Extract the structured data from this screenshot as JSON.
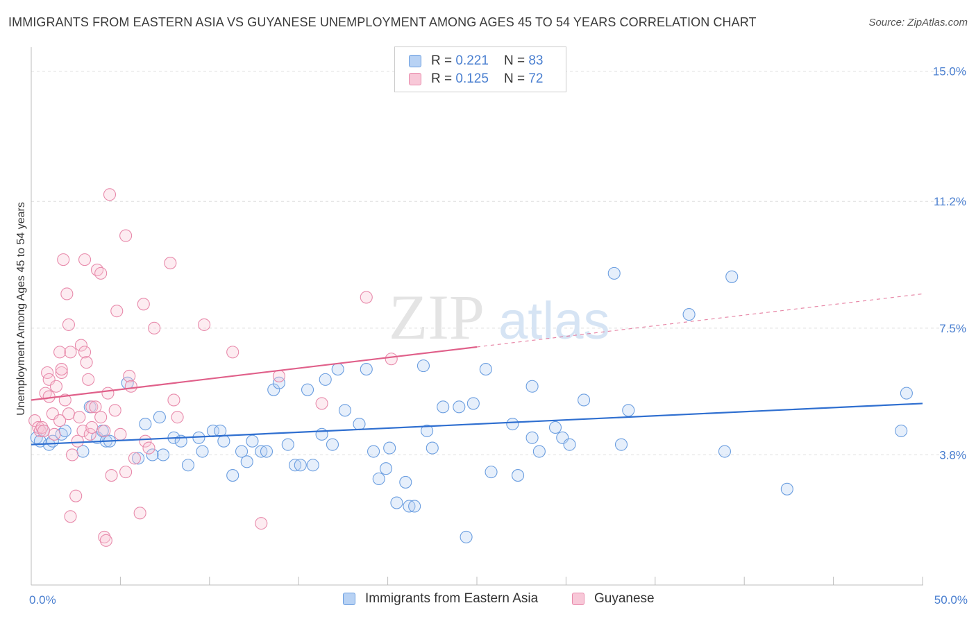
{
  "title": "IMMIGRANTS FROM EASTERN ASIA VS GUYANESE UNEMPLOYMENT AMONG AGES 45 TO 54 YEARS CORRELATION CHART",
  "source": "Source: ZipAtlas.com",
  "watermark": {
    "zip": "ZIP",
    "atlas": "atlas"
  },
  "legend": {
    "blue": {
      "r_label": "R = ",
      "r_value": "0.221",
      "n_label": "N = ",
      "n_value": "83"
    },
    "pink": {
      "r_label": "R = ",
      "r_value": "0.125",
      "n_label": "N = ",
      "n_value": "72"
    }
  },
  "chart_data": {
    "type": "scatter",
    "title": "IMMIGRANTS FROM EASTERN ASIA VS GUYANESE UNEMPLOYMENT AMONG AGES 45 TO 54 YEARS CORRELATION CHART",
    "xlabel": "",
    "ylabel": "Unemployment Among Ages 45 to 54 years",
    "xlim": [
      0,
      50
    ],
    "ylim": [
      0,
      15.5
    ],
    "x_tick_labels": [
      "0.0%",
      "50.0%"
    ],
    "y_ticks": [
      3.8,
      7.5,
      11.2,
      15.0
    ],
    "y_tick_labels": [
      "3.8%",
      "7.5%",
      "11.2%",
      "15.0%"
    ],
    "grid": true,
    "legend_position": "bottom-center",
    "colors": {
      "blue": "#6b9ee0",
      "blue_line": "#2f6fd0",
      "pink": "#e88aab",
      "pink_line": "#e0608a"
    },
    "series": [
      {
        "name": "Immigrants from Eastern Asia",
        "color": "#6b9ee0",
        "trend": {
          "x": [
            0,
            50
          ],
          "y": [
            4.1,
            5.3
          ],
          "style": "solid"
        },
        "points": [
          [
            0.3,
            4.3
          ],
          [
            0.5,
            4.2
          ],
          [
            0.7,
            4.5
          ],
          [
            1.0,
            4.1
          ],
          [
            1.2,
            4.2
          ],
          [
            1.7,
            4.4
          ],
          [
            1.9,
            4.5
          ],
          [
            2.9,
            3.9
          ],
          [
            3.3,
            5.2
          ],
          [
            3.7,
            4.3
          ],
          [
            4.0,
            4.5
          ],
          [
            4.2,
            4.2
          ],
          [
            4.4,
            4.2
          ],
          [
            5.4,
            5.9
          ],
          [
            6.0,
            3.7
          ],
          [
            6.4,
            4.7
          ],
          [
            6.8,
            3.8
          ],
          [
            7.2,
            4.9
          ],
          [
            7.4,
            3.8
          ],
          [
            8.0,
            4.3
          ],
          [
            8.4,
            4.2
          ],
          [
            8.8,
            3.5
          ],
          [
            9.4,
            4.3
          ],
          [
            9.6,
            3.9
          ],
          [
            10.2,
            4.5
          ],
          [
            10.6,
            4.5
          ],
          [
            10.8,
            4.2
          ],
          [
            11.3,
            3.2
          ],
          [
            11.8,
            3.9
          ],
          [
            12.1,
            3.6
          ],
          [
            12.4,
            4.2
          ],
          [
            12.9,
            3.9
          ],
          [
            13.2,
            3.9
          ],
          [
            13.6,
            5.7
          ],
          [
            13.9,
            5.9
          ],
          [
            14.4,
            4.1
          ],
          [
            14.8,
            3.5
          ],
          [
            15.1,
            3.5
          ],
          [
            15.5,
            5.7
          ],
          [
            15.8,
            3.5
          ],
          [
            16.3,
            4.4
          ],
          [
            16.5,
            6.0
          ],
          [
            16.9,
            4.1
          ],
          [
            17.2,
            6.3
          ],
          [
            17.6,
            5.1
          ],
          [
            18.4,
            4.7
          ],
          [
            18.8,
            6.3
          ],
          [
            19.2,
            3.9
          ],
          [
            19.5,
            3.1
          ],
          [
            19.9,
            3.4
          ],
          [
            20.1,
            4.0
          ],
          [
            20.5,
            2.4
          ],
          [
            21.0,
            3.0
          ],
          [
            21.2,
            2.3
          ],
          [
            21.5,
            2.3
          ],
          [
            22.0,
            6.4
          ],
          [
            22.2,
            4.5
          ],
          [
            22.5,
            4.0
          ],
          [
            23.1,
            5.2
          ],
          [
            24.0,
            5.2
          ],
          [
            24.4,
            1.4
          ],
          [
            24.8,
            5.3
          ],
          [
            25.5,
            6.3
          ],
          [
            25.8,
            3.3
          ],
          [
            27.3,
            3.2
          ],
          [
            27.0,
            4.7
          ],
          [
            28.1,
            5.8
          ],
          [
            28.1,
            4.3
          ],
          [
            28.5,
            3.9
          ],
          [
            29.4,
            4.6
          ],
          [
            29.8,
            4.3
          ],
          [
            30.2,
            4.1
          ],
          [
            31.0,
            5.4
          ],
          [
            32.7,
            9.1
          ],
          [
            33.1,
            4.1
          ],
          [
            33.5,
            5.1
          ],
          [
            36.9,
            7.9
          ],
          [
            38.9,
            3.9
          ],
          [
            39.3,
            9.0
          ],
          [
            42.4,
            2.8
          ],
          [
            48.8,
            4.5
          ],
          [
            49.1,
            5.6
          ]
        ]
      },
      {
        "name": "Guyanese",
        "color": "#e88aab",
        "trend": {
          "x": [
            0,
            50
          ],
          "y": [
            5.4,
            8.5
          ],
          "style": "solid-then-dashed",
          "solid_until_x": 25
        },
        "points": [
          [
            0.2,
            4.8
          ],
          [
            0.4,
            4.6
          ],
          [
            0.5,
            4.5
          ],
          [
            0.6,
            4.6
          ],
          [
            0.7,
            4.5
          ],
          [
            0.8,
            5.6
          ],
          [
            0.9,
            6.2
          ],
          [
            1.0,
            6.0
          ],
          [
            1.0,
            5.5
          ],
          [
            1.2,
            5.0
          ],
          [
            1.3,
            4.4
          ],
          [
            1.4,
            5.8
          ],
          [
            1.6,
            4.8
          ],
          [
            1.6,
            6.8
          ],
          [
            1.7,
            6.2
          ],
          [
            1.7,
            6.3
          ],
          [
            1.8,
            9.5
          ],
          [
            1.9,
            5.4
          ],
          [
            2.0,
            8.5
          ],
          [
            2.1,
            7.6
          ],
          [
            2.1,
            5.0
          ],
          [
            2.2,
            6.8
          ],
          [
            2.3,
            3.8
          ],
          [
            2.2,
            2.0
          ],
          [
            2.5,
            2.6
          ],
          [
            2.6,
            4.2
          ],
          [
            2.7,
            4.9
          ],
          [
            2.8,
            7.0
          ],
          [
            2.9,
            4.5
          ],
          [
            3.0,
            6.8
          ],
          [
            3.0,
            9.5
          ],
          [
            3.1,
            6.5
          ],
          [
            3.2,
            6.0
          ],
          [
            3.3,
            4.4
          ],
          [
            3.4,
            5.2
          ],
          [
            3.4,
            4.6
          ],
          [
            3.6,
            5.2
          ],
          [
            3.7,
            9.2
          ],
          [
            3.9,
            9.1
          ],
          [
            3.9,
            4.9
          ],
          [
            4.1,
            4.5
          ],
          [
            4.1,
            1.4
          ],
          [
            4.2,
            1.3
          ],
          [
            4.3,
            5.6
          ],
          [
            4.4,
            11.4
          ],
          [
            4.5,
            3.2
          ],
          [
            4.7,
            5.1
          ],
          [
            4.8,
            8.0
          ],
          [
            5.0,
            4.4
          ],
          [
            5.3,
            3.3
          ],
          [
            5.3,
            10.2
          ],
          [
            5.5,
            6.1
          ],
          [
            5.6,
            5.8
          ],
          [
            5.8,
            3.7
          ],
          [
            6.1,
            2.1
          ],
          [
            6.3,
            8.2
          ],
          [
            6.4,
            4.2
          ],
          [
            6.6,
            4.0
          ],
          [
            6.9,
            7.5
          ],
          [
            7.8,
            9.4
          ],
          [
            8.0,
            5.4
          ],
          [
            8.2,
            4.9
          ],
          [
            9.7,
            7.6
          ],
          [
            11.3,
            6.8
          ],
          [
            12.9,
            1.8
          ],
          [
            13.9,
            6.1
          ],
          [
            16.3,
            5.3
          ],
          [
            18.8,
            8.4
          ],
          [
            20.2,
            6.6
          ]
        ]
      }
    ]
  },
  "bottom_legend": {
    "blue_label": "Immigrants from Eastern Asia",
    "pink_label": "Guyanese"
  }
}
